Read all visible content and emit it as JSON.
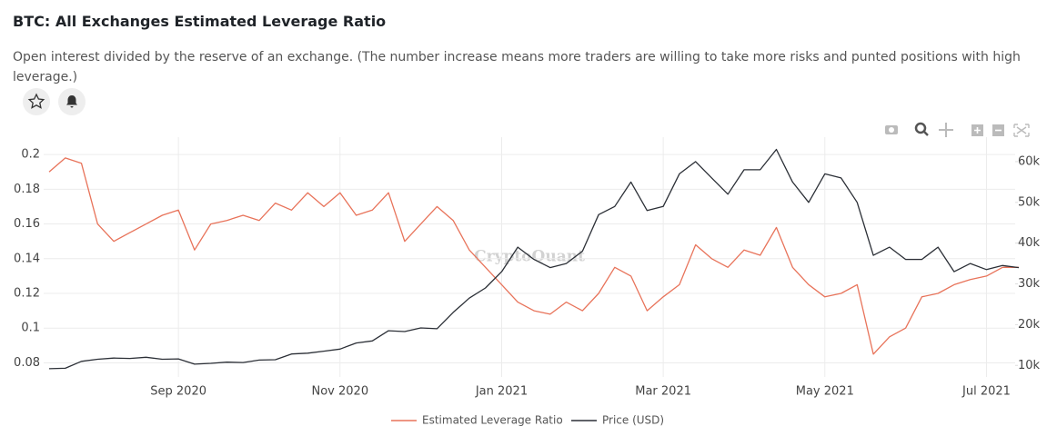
{
  "chart_data": {
    "type": "line",
    "title": "BTC: All Exchanges Estimated Leverage Ratio",
    "subtitle": "Open interest divided by the reserve of an exchange. (The number increase means more traders are willing to take more risks and punted positions with high leverage.)",
    "watermark": "CryptoQuant",
    "grid": true,
    "categories": [
      null,
      null,
      null,
      null,
      null,
      null,
      null,
      null,
      "Sep 2020",
      null,
      null,
      null,
      null,
      null,
      null,
      null,
      null,
      null,
      "Nov 2020",
      null,
      null,
      null,
      null,
      null,
      null,
      null,
      null,
      null,
      "Jan 2021",
      null,
      null,
      null,
      null,
      null,
      null,
      null,
      null,
      null,
      "Mar 2021",
      null,
      null,
      null,
      null,
      null,
      null,
      null,
      null,
      null,
      "May 2021",
      null,
      null,
      null,
      null,
      null,
      null,
      null,
      null,
      null,
      "Jul 2021",
      null,
      null
    ],
    "ylim": [
      0.075,
      0.21
    ],
    "yticks": [
      0.08,
      0.1,
      0.12,
      0.14,
      0.16,
      0.18,
      0.2
    ],
    "y2lim": [
      8500,
      66000
    ],
    "y2ticks": [
      {
        "value": 10000,
        "label": "10k"
      },
      {
        "value": 20000,
        "label": "20k"
      },
      {
        "value": 30000,
        "label": "30k"
      },
      {
        "value": 40000,
        "label": "40k"
      },
      {
        "value": 50000,
        "label": "50k"
      },
      {
        "value": 60000,
        "label": "60k"
      }
    ],
    "series": [
      {
        "name": "Estimated Leverage Ratio",
        "color": "#e8735a",
        "values": [
          0.19,
          0.198,
          0.195,
          0.16,
          0.15,
          0.155,
          0.16,
          0.165,
          0.168,
          0.145,
          0.16,
          0.162,
          0.165,
          0.162,
          0.172,
          0.168,
          0.178,
          0.17,
          0.178,
          0.165,
          0.168,
          0.178,
          0.15,
          0.16,
          0.17,
          0.162,
          0.145,
          0.135,
          0.125,
          0.115,
          0.11,
          0.108,
          0.115,
          0.11,
          0.12,
          0.135,
          0.13,
          0.11,
          0.118,
          0.125,
          0.148,
          0.14,
          0.135,
          0.145,
          0.142,
          0.158,
          0.135,
          0.125,
          0.118,
          0.12,
          0.125,
          0.085,
          0.095,
          0.1,
          0.118,
          0.12,
          0.125,
          0.128,
          0.13,
          0.135,
          0.135
        ]
      },
      {
        "name": "Price (USD)",
        "color": "#2b2f36",
        "axis": "y2",
        "values": [
          9200,
          9300,
          11000,
          11500,
          11800,
          11700,
          12000,
          11500,
          11600,
          10300,
          10500,
          10800,
          10700,
          11300,
          11400,
          12800,
          13000,
          13500,
          14000,
          15500,
          16000,
          18500,
          18300,
          19200,
          19000,
          23000,
          26500,
          29000,
          33000,
          39000,
          36000,
          34000,
          35000,
          38000,
          47000,
          49000,
          55000,
          48000,
          49000,
          57000,
          60000,
          56000,
          52000,
          58000,
          58000,
          63000,
          55000,
          50000,
          57000,
          56000,
          50000,
          37000,
          39000,
          36000,
          36000,
          39000,
          33000,
          35000,
          33500,
          34500,
          34000
        ]
      }
    ]
  }
}
